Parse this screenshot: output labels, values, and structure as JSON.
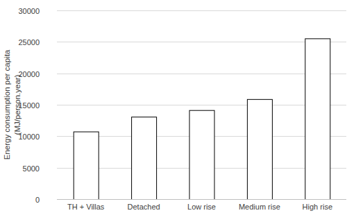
{
  "chart_data": {
    "type": "bar",
    "ylabel": "Energy consumption per capita (MJ/person.year)",
    "categories": [
      "TH + Villas",
      "Detached",
      "Low rise",
      "Medium rise",
      "High rise"
    ],
    "values": [
      10750,
      13100,
      14150,
      15900,
      25550
    ],
    "color": "#ffffff",
    "ylim": [
      0,
      30000
    ],
    "yticks": [
      0,
      5000,
      10000,
      15000,
      20000,
      25000,
      30000
    ],
    "grid": true
  }
}
